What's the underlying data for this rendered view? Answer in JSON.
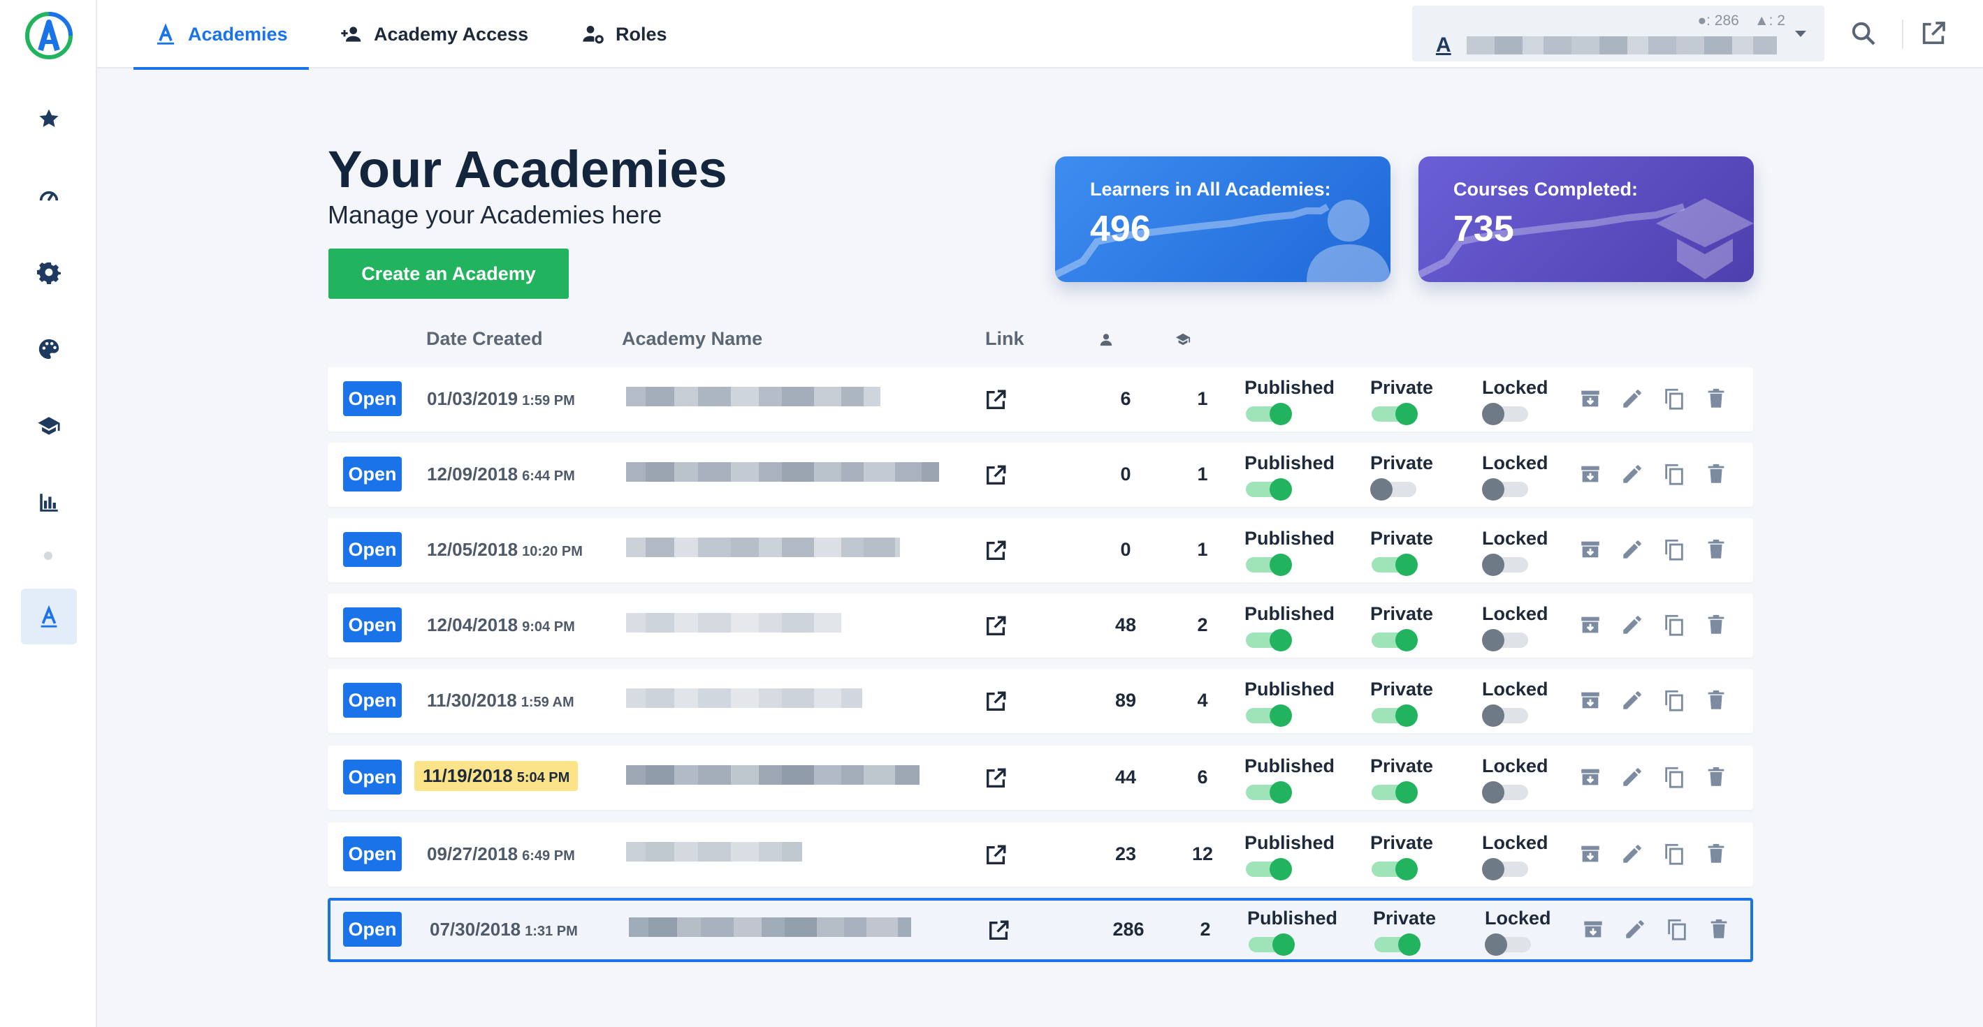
{
  "topbar": {
    "tabs": [
      {
        "label": "Academies",
        "icon": "academy-a-icon",
        "active": true
      },
      {
        "label": "Academy Access",
        "icon": "person-add-icon",
        "active": false
      },
      {
        "label": "Roles",
        "icon": "person-gear-icon",
        "active": false
      }
    ],
    "account": {
      "letter": "A",
      "learners": ": 286",
      "courses": ": 2"
    }
  },
  "sidebar": {
    "items": [
      "star-icon",
      "speedometer-icon",
      "gear-icon",
      "palette-icon",
      "graduation-cap-icon",
      "bar-chart-icon",
      "academy-a-icon"
    ],
    "active_letter": "A"
  },
  "header": {
    "title": "Your Academies",
    "subtitle": "Manage your Academies here",
    "create_label": "Create an Academy"
  },
  "stats": {
    "learners_label": "Learners in All Academies:",
    "learners_value": "496",
    "courses_label": "Courses Completed:",
    "courses_value": "735"
  },
  "table": {
    "columns": {
      "date": "Date Created",
      "name": "Academy Name",
      "link": "Link"
    },
    "open_label": "Open",
    "toggle_labels": {
      "published": "Published",
      "private": "Private",
      "locked": "Locked"
    },
    "rows": [
      {
        "date": "01/03/2019",
        "time": "1:59 PM",
        "learners": "6",
        "courses": "1",
        "published": true,
        "private": true,
        "locked": false,
        "highlight": false,
        "selected": false
      },
      {
        "date": "12/09/2018",
        "time": "6:44 PM",
        "learners": "0",
        "courses": "1",
        "published": true,
        "private": false,
        "locked": false,
        "highlight": false,
        "selected": false
      },
      {
        "date": "12/05/2018",
        "time": "10:20 PM",
        "learners": "0",
        "courses": "1",
        "published": true,
        "private": true,
        "locked": false,
        "highlight": false,
        "selected": false
      },
      {
        "date": "12/04/2018",
        "time": "9:04 PM",
        "learners": "48",
        "courses": "2",
        "published": true,
        "private": true,
        "locked": false,
        "highlight": false,
        "selected": false
      },
      {
        "date": "11/30/2018",
        "time": "1:59 AM",
        "learners": "89",
        "courses": "4",
        "published": true,
        "private": true,
        "locked": false,
        "highlight": false,
        "selected": false
      },
      {
        "date": "11/19/2018",
        "time": "5:04 PM",
        "learners": "44",
        "courses": "6",
        "published": true,
        "private": true,
        "locked": false,
        "highlight": true,
        "selected": false
      },
      {
        "date": "09/27/2018",
        "time": "6:49 PM",
        "learners": "23",
        "courses": "12",
        "published": true,
        "private": true,
        "locked": false,
        "highlight": false,
        "selected": false
      },
      {
        "date": "07/30/2018",
        "time": "1:31 PM",
        "learners": "286",
        "courses": "2",
        "published": true,
        "private": true,
        "locked": false,
        "highlight": false,
        "selected": true
      }
    ]
  },
  "colors": {
    "primary": "#1a73e8",
    "success": "#22b35e",
    "highlight": "#fbe38a",
    "navy": "#14263d"
  }
}
